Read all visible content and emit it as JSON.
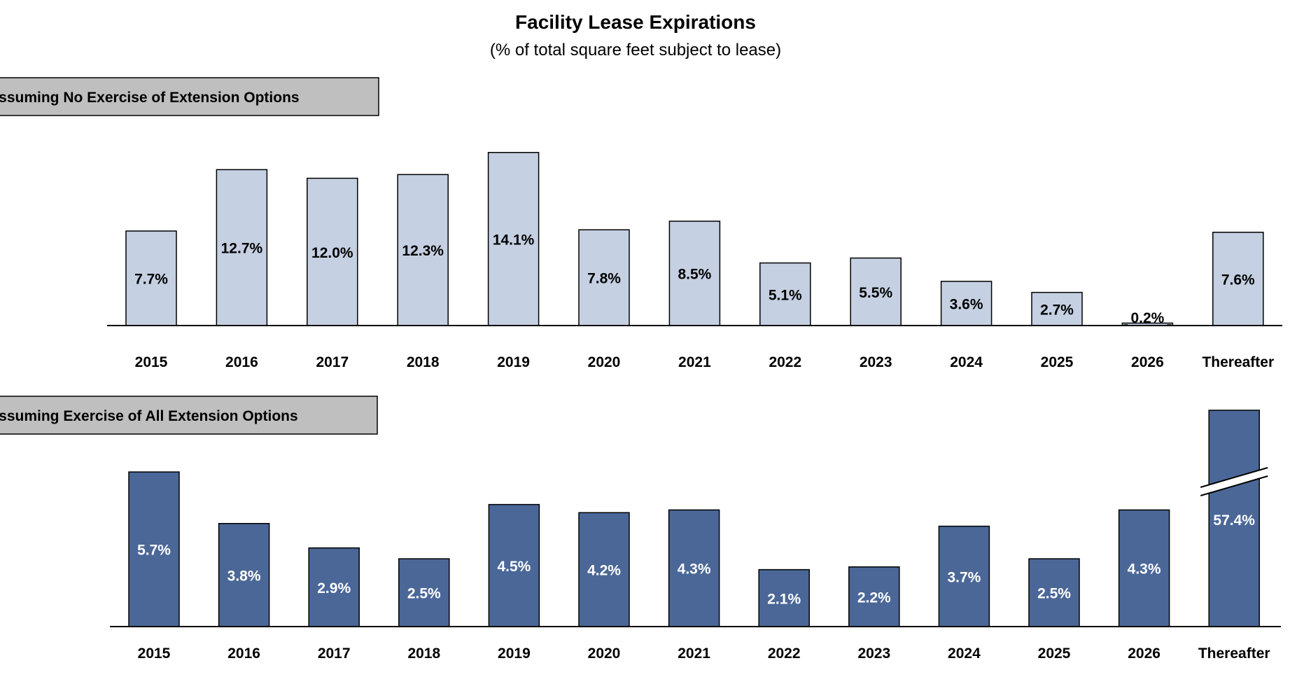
{
  "header": {
    "title": "Facility Lease Expirations",
    "subtitle": "(% of total square feet subject to lease)"
  },
  "colors": {
    "light_bar": "#c5d0e2",
    "dark_bar": "#4a6797",
    "panel_label_bg": "#bfbfbf",
    "axis": "#000000"
  },
  "chart_data": [
    {
      "type": "bar",
      "title": "Assuming No Exercise of Extension Options",
      "categories": [
        "2015",
        "2016",
        "2017",
        "2018",
        "2019",
        "2020",
        "2021",
        "2022",
        "2023",
        "2024",
        "2025",
        "2026",
        "Thereafter"
      ],
      "values": [
        7.7,
        12.7,
        12.0,
        12.3,
        14.1,
        7.8,
        8.5,
        5.1,
        5.5,
        3.6,
        2.7,
        0.2,
        7.6
      ],
      "data_labels": [
        "7.7%",
        "12.7%",
        "12.0%",
        "12.3%",
        "14.1%",
        "7.8%",
        "8.5%",
        "5.1%",
        "5.5%",
        "3.6%",
        "2.7%",
        "0.2%",
        "7.6%"
      ],
      "color": "#c5d0e2",
      "label_color": "#000000",
      "ylim": [
        0,
        15
      ],
      "grid": false,
      "legend": "none"
    },
    {
      "type": "bar",
      "title": "Assuming Exercise of All Extension Options",
      "categories": [
        "2015",
        "2016",
        "2017",
        "2018",
        "2019",
        "2020",
        "2021",
        "2022",
        "2023",
        "2024",
        "2025",
        "2026",
        "Thereafter"
      ],
      "values": [
        5.7,
        3.8,
        2.9,
        2.5,
        4.5,
        4.2,
        4.3,
        2.1,
        2.2,
        3.7,
        2.5,
        4.3,
        57.4
      ],
      "data_labels": [
        "5.7%",
        "3.8%",
        "2.9%",
        "2.5%",
        "4.5%",
        "4.2%",
        "4.3%",
        "2.1%",
        "2.2%",
        "3.7%",
        "2.5%",
        "4.3%",
        "57.4%"
      ],
      "color": "#4a6797",
      "label_color": "#ffffff",
      "ylim": [
        0,
        8
      ],
      "axis_break_on_last_bar": true,
      "grid": false,
      "legend": "none"
    }
  ]
}
